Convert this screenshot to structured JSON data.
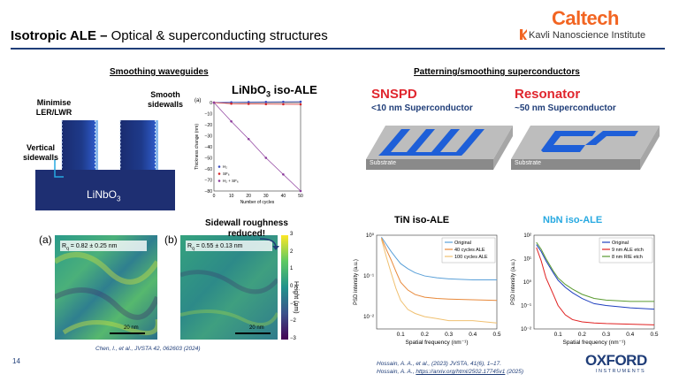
{
  "header": {
    "title_bold": "Isotropic ALE –",
    "title_rest": " Optical & superconducting structures",
    "logo_text": "Caltech",
    "institute": "Kavli Nanoscience Institute",
    "colors": {
      "accent": "#f26522",
      "rule": "#1f3d78"
    }
  },
  "left": {
    "section_title": "Smoothing waveguides",
    "labels": {
      "minimise": "Minimise\nLER/LWR",
      "smooth": "Smooth\nsidewalls",
      "vertical": "Vertical\nsidewalls",
      "material": "LiNbO",
      "material_sub": "3"
    },
    "chart_title": "LiNbO",
    "chart_title_sub": "3",
    "chart_title_rest": " iso-ALE",
    "panel_a": "(a)",
    "panel_b": "(b)",
    "afm_a_label": "R",
    "afm_a_sub": "q",
    "afm_a_value": " = 0.82 ± 0.25 nm",
    "afm_b_value": " = 0.55 ± 0.13 nm",
    "scale": "20 nm",
    "callout": "Sidewall roughness\nreduced!",
    "colorbar_label": "Height (nm)",
    "colorbar_ticks": [
      "3",
      "2",
      "1",
      "0",
      "−1",
      "−2",
      "−3"
    ],
    "citation": "Chen, I., et al., JVSTA 42, 062603 (2024)"
  },
  "right": {
    "section_title": "Patterning/smoothing superconductors",
    "snspd_title": "SNSPD",
    "snspd_sub": "<10 nm Superconductor",
    "resonator_title": "Resonator",
    "resonator_sub": "~50 nm Superconductor",
    "substrate": "Substrate",
    "tin_title": "TiN iso-ALE",
    "nbn_title": "NbN iso-ALE",
    "citation1": "Hossain, A. A., et al., (2023) JVSTA, 41(6), 1–17.",
    "citation2_prefix": "Hossain, A. A., ",
    "citation2_link": "https://arxiv.org/html/2502.17745v1",
    "citation2_suffix": " (2025)"
  },
  "footer": {
    "page_number": "14",
    "logo_top": "OXFORD",
    "logo_bottom": "INSTRUMENTS"
  },
  "chart_data": [
    {
      "type": "line",
      "title": "",
      "panel": "(a)",
      "xlabel": "Number of cycles",
      "ylabel": "Thickness change (nm)",
      "xlim": [
        0,
        50
      ],
      "ylim": [
        -80,
        0
      ],
      "xticks": [
        0,
        10,
        20,
        30,
        40,
        50
      ],
      "yticks": [
        0,
        -10,
        -20,
        -30,
        -40,
        -50,
        -60,
        -70,
        -80
      ],
      "legend": "bottom-left",
      "series": [
        {
          "name": "H₂",
          "color": "#3b4cc0",
          "x": [
            0,
            10,
            20,
            30,
            40,
            50
          ],
          "y": [
            0,
            0.3,
            0.5,
            0.6,
            0.7,
            0.8
          ]
        },
        {
          "name": "SF₆",
          "color": "#d62728",
          "x": [
            0,
            10,
            20,
            30,
            40,
            50
          ],
          "y": [
            0,
            -1,
            -1.2,
            -1.4,
            -1.5,
            -1.6
          ]
        },
        {
          "name": "H₂ + SF₆",
          "color": "#8c3c9c",
          "x": [
            0,
            10,
            20,
            30,
            40,
            50
          ],
          "y": [
            0,
            -17,
            -33,
            -50,
            -65,
            -80
          ]
        }
      ]
    },
    {
      "type": "line",
      "title": "TiN iso-ALE",
      "xlabel": "Spatial frequency (nm⁻¹)",
      "ylabel": "PSD intensity (a.u.)",
      "xlim": [
        0,
        0.5
      ],
      "ylim": [
        0.005,
        1
      ],
      "yscale": "log",
      "xticks": [
        0.1,
        0.2,
        0.3,
        0.4,
        0.5
      ],
      "ytick_labels": [
        "10⁰",
        "10⁻¹",
        "10⁻²"
      ],
      "legend": "top-right",
      "series": [
        {
          "name": "Original",
          "color": "#5aa0d8",
          "x": [
            0.02,
            0.04,
            0.06,
            0.08,
            0.1,
            0.13,
            0.16,
            0.2,
            0.25,
            0.3,
            0.4,
            0.5
          ],
          "y": [
            0.9,
            0.6,
            0.4,
            0.28,
            0.2,
            0.15,
            0.12,
            0.1,
            0.09,
            0.085,
            0.08,
            0.08
          ]
        },
        {
          "name": "40 cycles ALE",
          "color": "#e8893a",
          "x": [
            0.02,
            0.04,
            0.06,
            0.08,
            0.1,
            0.13,
            0.16,
            0.2,
            0.25,
            0.3,
            0.4,
            0.5
          ],
          "y": [
            0.85,
            0.45,
            0.25,
            0.13,
            0.07,
            0.045,
            0.035,
            0.03,
            0.028,
            0.027,
            0.026,
            0.025
          ]
        },
        {
          "name": "100 cycles ALE",
          "color": "#f0c070",
          "x": [
            0.02,
            0.04,
            0.06,
            0.08,
            0.1,
            0.13,
            0.16,
            0.2,
            0.25,
            0.3,
            0.4,
            0.5
          ],
          "y": [
            0.8,
            0.3,
            0.12,
            0.05,
            0.025,
            0.015,
            0.012,
            0.01,
            0.009,
            0.008,
            0.008,
            0.007
          ]
        }
      ]
    },
    {
      "type": "line",
      "title": "NbN iso-ALE",
      "xlabel": "Spatial frequency (nm⁻¹)",
      "ylabel": "PSD intensity (a.u.)",
      "xlim": [
        0,
        0.5
      ],
      "ylim": [
        0.01,
        100
      ],
      "yscale": "log",
      "xticks": [
        0.1,
        0.2,
        0.3,
        0.4,
        0.5
      ],
      "ytick_labels": [
        "10²",
        "10¹",
        "10⁰",
        "10⁻¹",
        "10⁻²"
      ],
      "legend": "top-right",
      "series": [
        {
          "name": "Original",
          "color": "#1f3fbf",
          "x": [
            0.01,
            0.03,
            0.05,
            0.08,
            0.1,
            0.13,
            0.16,
            0.2,
            0.25,
            0.3,
            0.4,
            0.5
          ],
          "y": [
            40,
            20,
            8,
            2.5,
            1.2,
            0.6,
            0.35,
            0.2,
            0.12,
            0.1,
            0.08,
            0.07
          ]
        },
        {
          "name": "9 nm ALE etch",
          "color": "#e02020",
          "x": [
            0.01,
            0.03,
            0.05,
            0.08,
            0.1,
            0.13,
            0.16,
            0.2,
            0.25,
            0.3,
            0.4,
            0.5
          ],
          "y": [
            30,
            8,
            1.5,
            0.3,
            0.1,
            0.04,
            0.025,
            0.02,
            0.018,
            0.017,
            0.016,
            0.015
          ]
        },
        {
          "name": "8 nm RIE etch",
          "color": "#5a9a30",
          "x": [
            0.01,
            0.03,
            0.05,
            0.08,
            0.1,
            0.13,
            0.16,
            0.2,
            0.25,
            0.3,
            0.4,
            0.5
          ],
          "y": [
            50,
            25,
            10,
            3,
            1.5,
            0.8,
            0.5,
            0.3,
            0.2,
            0.17,
            0.15,
            0.15
          ]
        }
      ]
    }
  ]
}
